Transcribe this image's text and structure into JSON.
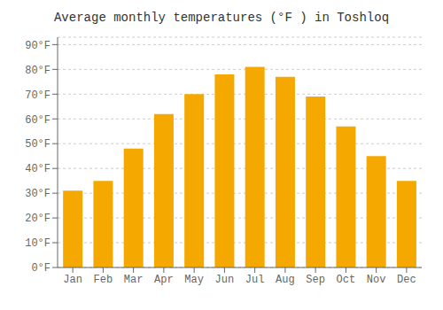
{
  "chart_data": {
    "type": "bar",
    "title": "Average monthly temperatures (°F ) in Toshloq",
    "categories": [
      "Jan",
      "Feb",
      "Mar",
      "Apr",
      "May",
      "Jun",
      "Jul",
      "Aug",
      "Sep",
      "Oct",
      "Nov",
      "Dec"
    ],
    "values": [
      31,
      35,
      48,
      62,
      70,
      78,
      81,
      77,
      69,
      57,
      45,
      35
    ],
    "color": "#F5A800",
    "ylim": [
      0,
      93
    ],
    "yticks": [
      {
        "value": 0,
        "label": "0°F"
      },
      {
        "value": 10,
        "label": "10°F"
      },
      {
        "value": 20,
        "label": "20°F"
      },
      {
        "value": 30,
        "label": "30°F"
      },
      {
        "value": 40,
        "label": "40°F"
      },
      {
        "value": 50,
        "label": "50°F"
      },
      {
        "value": 60,
        "label": "60°F"
      },
      {
        "value": 70,
        "label": "70°F"
      },
      {
        "value": 80,
        "label": "80°F"
      },
      {
        "value": 90,
        "label": "90°F"
      }
    ],
    "grid": true
  }
}
